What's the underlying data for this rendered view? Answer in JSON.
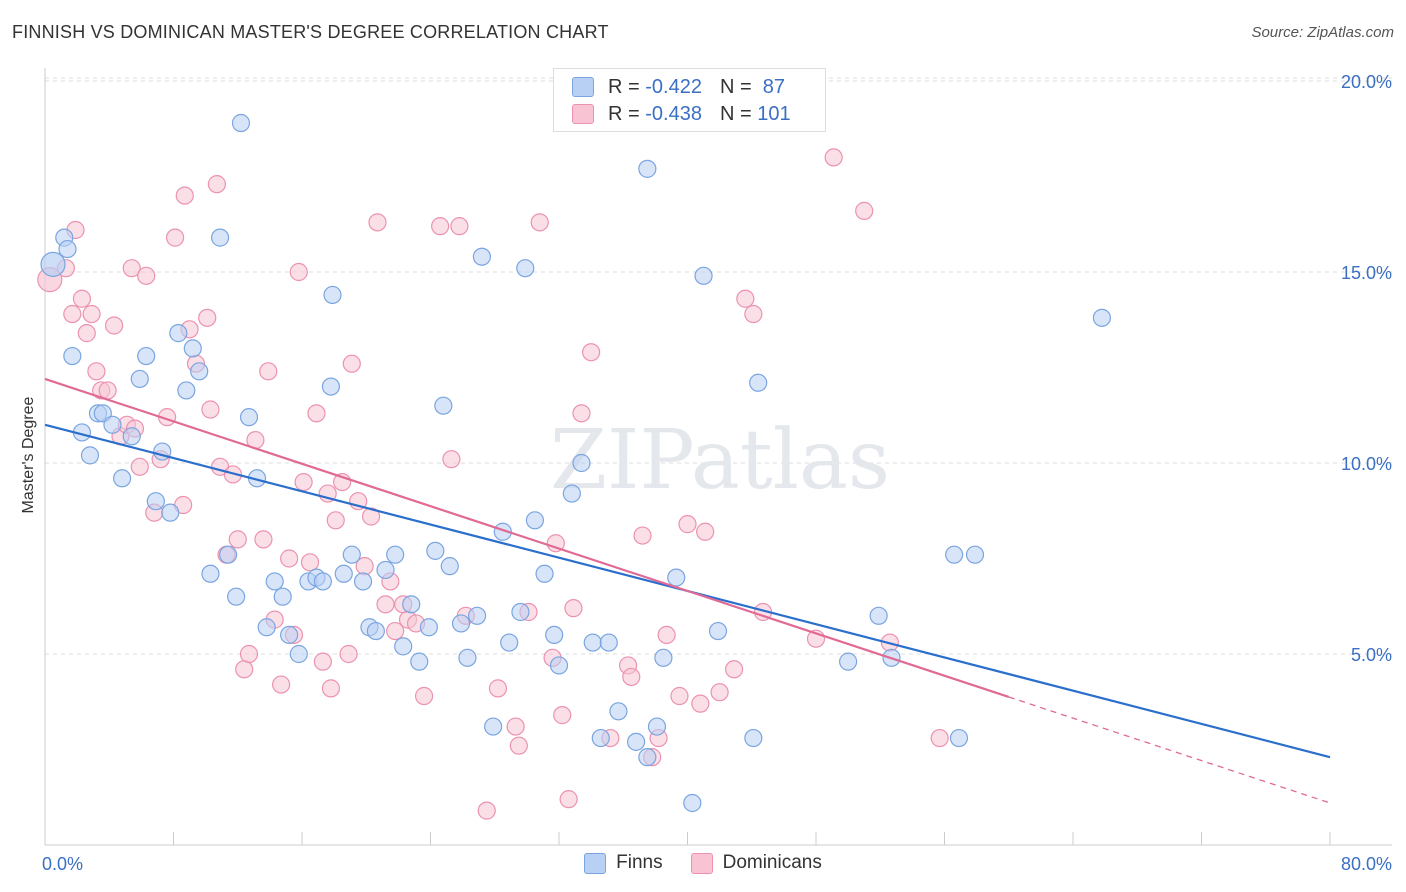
{
  "title": "FINNISH VS DOMINICAN MASTER'S DEGREE CORRELATION CHART",
  "source": "Source: ZipAtlas.com",
  "watermark": "ZIPatlas",
  "legend_box": {
    "rows": [
      {
        "r_label": "R = ",
        "r_value": "-0.422",
        "n_label": "N = ",
        "n_value": " 87",
        "color": "#a9c6f0"
      },
      {
        "r_label": "R = ",
        "r_value": "-0.438",
        "n_label": "N = ",
        "n_value": "101",
        "color": "#f5b8cb"
      }
    ]
  },
  "bottom_legend": [
    {
      "label": "Finns",
      "color": "#b8d0f4"
    },
    {
      "label": "Dominicans",
      "color": "#f8c4d4"
    }
  ],
  "colors": {
    "finns_fill": "#b8d0f4",
    "finns_stroke": "#7aa5e0",
    "finns_line": "#2b6fcc",
    "dom_fill": "#f8c4d4",
    "dom_stroke": "#ec92b0",
    "dom_line": "#e06a94",
    "axis_text": "#3a6fc4",
    "grid": "#dcdcdc"
  },
  "chart_data": {
    "type": "scatter",
    "title": "FINNISH VS DOMINICAN MASTER'S DEGREE CORRELATION CHART",
    "xlabel": "",
    "ylabel": "Master's Degree",
    "xlim": [
      0,
      80
    ],
    "ylim": [
      0,
      20.5
    ],
    "x_tick_labels": [
      "0.0%",
      "80.0%"
    ],
    "y_ticks": [
      5,
      10,
      15,
      20
    ],
    "y_tick_labels": [
      "5.0%",
      "10.0%",
      "15.0%",
      "20.0%"
    ],
    "grid": true,
    "legend_position": "top-center",
    "series": [
      {
        "name": "Finns",
        "r": -0.422,
        "n": 87,
        "trend": {
          "x0": 0,
          "y0": 11.0,
          "x1": 80,
          "y1": 2.3,
          "dashed_from": null
        },
        "points": [
          [
            0.5,
            15.2
          ],
          [
            1.2,
            15.9
          ],
          [
            1.4,
            15.6
          ],
          [
            1.7,
            12.8
          ],
          [
            2.3,
            10.8
          ],
          [
            2.8,
            10.2
          ],
          [
            3.3,
            11.3
          ],
          [
            3.6,
            11.3
          ],
          [
            4.2,
            11.0
          ],
          [
            4.8,
            9.6
          ],
          [
            5.4,
            10.7
          ],
          [
            5.9,
            12.2
          ],
          [
            6.3,
            12.8
          ],
          [
            6.9,
            9.0
          ],
          [
            7.3,
            10.3
          ],
          [
            7.8,
            8.7
          ],
          [
            8.3,
            13.4
          ],
          [
            8.8,
            11.9
          ],
          [
            9.2,
            13.0
          ],
          [
            9.6,
            12.4
          ],
          [
            10.3,
            7.1
          ],
          [
            10.9,
            15.9
          ],
          [
            11.4,
            7.6
          ],
          [
            11.9,
            6.5
          ],
          [
            12.2,
            18.9
          ],
          [
            12.7,
            11.2
          ],
          [
            13.2,
            9.6
          ],
          [
            13.8,
            5.7
          ],
          [
            14.3,
            6.9
          ],
          [
            14.8,
            6.5
          ],
          [
            15.2,
            5.5
          ],
          [
            15.8,
            5.0
          ],
          [
            16.4,
            6.9
          ],
          [
            16.9,
            7.0
          ],
          [
            17.3,
            6.9
          ],
          [
            17.9,
            14.4
          ],
          [
            17.8,
            12.0
          ],
          [
            18.6,
            7.1
          ],
          [
            19.1,
            7.6
          ],
          [
            19.8,
            6.9
          ],
          [
            20.2,
            5.7
          ],
          [
            20.6,
            5.6
          ],
          [
            21.2,
            7.2
          ],
          [
            21.8,
            7.6
          ],
          [
            22.3,
            5.2
          ],
          [
            22.8,
            6.3
          ],
          [
            23.3,
            4.8
          ],
          [
            23.9,
            5.7
          ],
          [
            24.3,
            7.7
          ],
          [
            24.8,
            11.5
          ],
          [
            25.2,
            7.3
          ],
          [
            25.9,
            5.8
          ],
          [
            26.3,
            4.9
          ],
          [
            26.9,
            6.0
          ],
          [
            27.2,
            15.4
          ],
          [
            27.9,
            3.1
          ],
          [
            28.5,
            8.2
          ],
          [
            28.9,
            5.3
          ],
          [
            29.6,
            6.1
          ],
          [
            29.9,
            15.1
          ],
          [
            30.5,
            8.5
          ],
          [
            31.1,
            7.1
          ],
          [
            31.7,
            5.5
          ],
          [
            32.0,
            4.7
          ],
          [
            32.8,
            9.2
          ],
          [
            33.4,
            10.0
          ],
          [
            34.1,
            5.3
          ],
          [
            34.6,
            2.8
          ],
          [
            35.1,
            5.3
          ],
          [
            35.7,
            3.5
          ],
          [
            36.8,
            2.7
          ],
          [
            37.5,
            17.7
          ],
          [
            37.5,
            2.3
          ],
          [
            38.1,
            3.1
          ],
          [
            38.5,
            4.9
          ],
          [
            39.3,
            7.0
          ],
          [
            40.3,
            1.1
          ],
          [
            41.0,
            14.9
          ],
          [
            41.9,
            5.6
          ],
          [
            44.1,
            2.8
          ],
          [
            44.4,
            12.1
          ],
          [
            50.0,
            4.8
          ],
          [
            51.9,
            6.0
          ],
          [
            52.7,
            4.9
          ],
          [
            56.6,
            7.6
          ],
          [
            56.9,
            2.8
          ],
          [
            57.9,
            7.6
          ],
          [
            65.8,
            13.8
          ]
        ]
      },
      {
        "name": "Dominicans",
        "r": -0.438,
        "n": 101,
        "trend": {
          "x0": 0,
          "y0": 12.2,
          "x1": 80,
          "y1": 1.1,
          "dashed_from": 60
        },
        "points": [
          [
            0.3,
            14.8
          ],
          [
            1.3,
            15.1
          ],
          [
            1.7,
            13.9
          ],
          [
            1.9,
            16.1
          ],
          [
            2.3,
            14.3
          ],
          [
            2.6,
            13.4
          ],
          [
            2.9,
            13.9
          ],
          [
            3.2,
            12.4
          ],
          [
            3.5,
            11.9
          ],
          [
            3.9,
            11.9
          ],
          [
            4.3,
            13.6
          ],
          [
            4.7,
            10.7
          ],
          [
            5.1,
            11.0
          ],
          [
            5.6,
            10.9
          ],
          [
            5.4,
            15.1
          ],
          [
            5.9,
            9.9
          ],
          [
            6.3,
            14.9
          ],
          [
            6.8,
            8.7
          ],
          [
            7.2,
            10.1
          ],
          [
            7.6,
            11.2
          ],
          [
            8.1,
            15.9
          ],
          [
            8.6,
            8.9
          ],
          [
            8.7,
            17.0
          ],
          [
            9.0,
            13.5
          ],
          [
            9.4,
            12.6
          ],
          [
            10.1,
            13.8
          ],
          [
            10.3,
            11.4
          ],
          [
            10.7,
            17.3
          ],
          [
            10.9,
            9.9
          ],
          [
            11.3,
            7.6
          ],
          [
            11.7,
            9.7
          ],
          [
            12.0,
            8.0
          ],
          [
            12.4,
            4.6
          ],
          [
            12.7,
            5.0
          ],
          [
            13.1,
            10.6
          ],
          [
            13.6,
            8.0
          ],
          [
            13.9,
            12.4
          ],
          [
            14.3,
            5.9
          ],
          [
            14.7,
            4.2
          ],
          [
            15.2,
            7.5
          ],
          [
            15.5,
            5.5
          ],
          [
            15.8,
            15.0
          ],
          [
            16.1,
            9.5
          ],
          [
            16.5,
            7.4
          ],
          [
            16.9,
            11.3
          ],
          [
            17.3,
            4.8
          ],
          [
            17.6,
            9.2
          ],
          [
            17.8,
            4.1
          ],
          [
            18.1,
            8.5
          ],
          [
            18.5,
            9.5
          ],
          [
            18.9,
            5.0
          ],
          [
            19.1,
            12.6
          ],
          [
            19.5,
            9.0
          ],
          [
            19.9,
            7.3
          ],
          [
            20.3,
            8.6
          ],
          [
            20.7,
            16.3
          ],
          [
            21.2,
            6.3
          ],
          [
            21.5,
            6.9
          ],
          [
            21.8,
            5.6
          ],
          [
            22.3,
            6.3
          ],
          [
            22.6,
            5.9
          ],
          [
            23.1,
            5.8
          ],
          [
            23.6,
            3.9
          ],
          [
            24.6,
            16.2
          ],
          [
            25.3,
            10.1
          ],
          [
            25.8,
            16.2
          ],
          [
            26.2,
            6.0
          ],
          [
            27.5,
            0.9
          ],
          [
            28.2,
            4.1
          ],
          [
            29.3,
            3.1
          ],
          [
            29.5,
            2.6
          ],
          [
            30.1,
            6.1
          ],
          [
            30.8,
            16.3
          ],
          [
            31.6,
            4.9
          ],
          [
            31.8,
            7.9
          ],
          [
            32.2,
            3.4
          ],
          [
            32.6,
            1.2
          ],
          [
            32.9,
            6.2
          ],
          [
            33.4,
            11.3
          ],
          [
            34.0,
            12.9
          ],
          [
            35.2,
            2.8
          ],
          [
            36.3,
            4.7
          ],
          [
            36.5,
            4.4
          ],
          [
            37.2,
            8.1
          ],
          [
            37.8,
            2.3
          ],
          [
            38.2,
            2.8
          ],
          [
            38.7,
            5.5
          ],
          [
            39.5,
            3.9
          ],
          [
            40.0,
            8.4
          ],
          [
            40.8,
            3.7
          ],
          [
            41.1,
            8.2
          ],
          [
            42.0,
            4.0
          ],
          [
            42.9,
            4.6
          ],
          [
            43.6,
            14.3
          ],
          [
            44.1,
            13.9
          ],
          [
            44.7,
            6.1
          ],
          [
            48.0,
            5.4
          ],
          [
            49.1,
            18.0
          ],
          [
            51.0,
            16.6
          ],
          [
            52.6,
            5.3
          ],
          [
            55.7,
            2.8
          ]
        ]
      }
    ]
  }
}
